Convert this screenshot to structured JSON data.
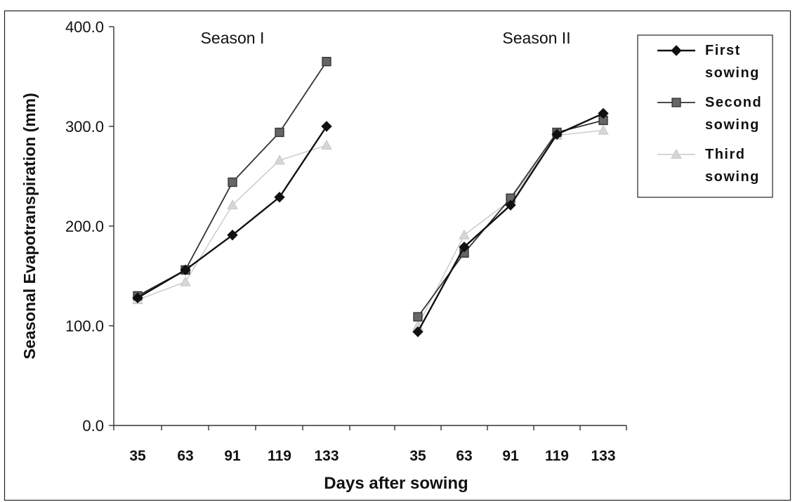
{
  "chart_data": {
    "type": "line",
    "xlabel": "Days after sowing",
    "ylabel": "Seasonal Evapotranspiration (mm)",
    "ylim": [
      0,
      400
    ],
    "yticks": [
      "0.0",
      "100.0",
      "200.0",
      "300.0",
      "400.0"
    ],
    "grid": false,
    "legend_position": "top-right",
    "panels": [
      {
        "title": "Season I",
        "categories": [
          "35",
          "63",
          "91",
          "119",
          "133"
        ],
        "series": [
          {
            "name": "First sowing",
            "values": [
              128,
              156,
              191,
              229,
              300
            ]
          },
          {
            "name": "Second sowing",
            "values": [
              130,
              156,
              244,
              294,
              365
            ]
          },
          {
            "name": "Third sowing",
            "values": [
              126,
              144,
              221,
              266,
              281
            ]
          }
        ]
      },
      {
        "title": "Season II",
        "categories": [
          "35",
          "63",
          "91",
          "119",
          "133"
        ],
        "series": [
          {
            "name": "First sowing",
            "values": [
              94,
              179,
              221,
              292,
              313
            ]
          },
          {
            "name": "Second sowing",
            "values": [
              109,
              173,
              228,
              294,
              306
            ]
          },
          {
            "name": "Third sowing",
            "values": [
              100,
              191,
              226,
              291,
              296
            ]
          }
        ]
      }
    ],
    "legend": [
      {
        "line1": "First",
        "line2": "sowing",
        "marker": "diamond",
        "color": "#111111"
      },
      {
        "line1": "Second",
        "line2": "sowing",
        "marker": "square",
        "color": "#333333"
      },
      {
        "line1": "Third",
        "line2": "sowing",
        "marker": "triangle",
        "color": "#c8c8c8"
      }
    ]
  }
}
